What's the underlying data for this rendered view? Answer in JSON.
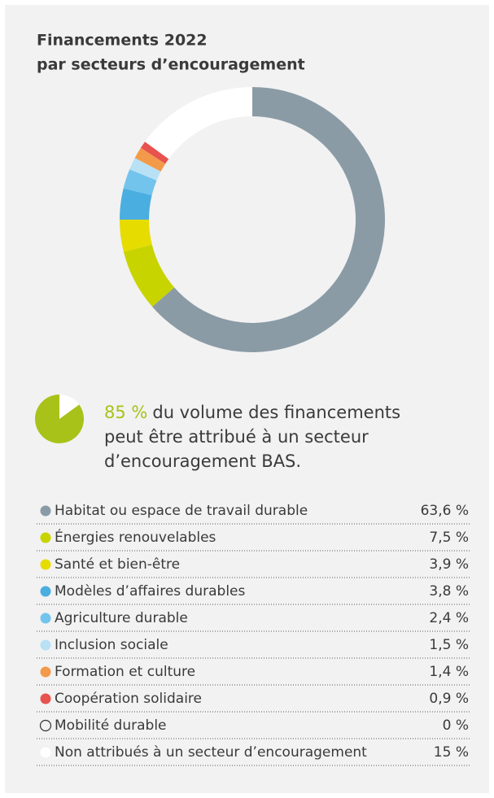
{
  "chart_data": [
    {
      "type": "donut",
      "title": [
        "Financements 2022",
        "par secteurs d’encouragement"
      ],
      "categories": [
        "Habitat ou espace de travail durable",
        "Énergies renouvelables",
        "Santé et bien-être",
        "Modèles d’affaires durables",
        "Agriculture durable",
        "Inclusion sociale",
        "Formation et culture",
        "Coopération solidaire",
        "Mobilité durable",
        "Non attribués à un secteur d’encouragement"
      ],
      "values": [
        63.6,
        7.5,
        3.9,
        3.8,
        2.4,
        1.5,
        1.4,
        0.9,
        0,
        15
      ],
      "value_labels": [
        "63,6 %",
        "7,5 %",
        "3,9 %",
        "3,8 %",
        "2,4 %",
        "1,5 %",
        "1,4 %",
        "0,9 %",
        "0 %",
        "15 %"
      ],
      "colors": [
        "#8a9ba6",
        "#c8d400",
        "#e6dc00",
        "#4aaee0",
        "#72c4ec",
        "#b9e1f6",
        "#f39a4a",
        "#e8524f",
        "none",
        "#ffffff"
      ]
    },
    {
      "type": "pie",
      "values": [
        85
      ],
      "value_labels": [
        "85 %"
      ],
      "text": [
        "du volume des financements",
        "peut être attribué à un secteur",
        "d’encouragement BAS."
      ],
      "color": "#a8c21a"
    }
  ]
}
